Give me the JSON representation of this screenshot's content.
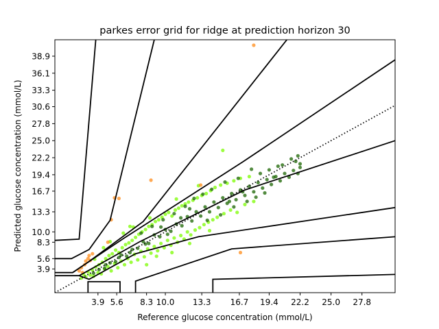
{
  "chart_data": {
    "type": "scatter",
    "title": "parkes error grid for ridge at prediction horizon 30",
    "xlabel": "Reference glucose concentration (mmol/L)",
    "ylabel": "Predicted glucose concentration (mmol/L)",
    "xlim": [
      0,
      30.8
    ],
    "ylim": [
      0,
      41.6
    ],
    "x_ticks": [
      3.9,
      5.6,
      8.3,
      10.0,
      13.3,
      16.7,
      19.4,
      22.2,
      25.0,
      27.8
    ],
    "y_ticks": [
      3.9,
      5.6,
      8.3,
      10.0,
      13.3,
      16.7,
      19.4,
      22.2,
      25.0,
      27.8,
      30.6,
      33.3,
      36.1,
      38.9
    ],
    "grid": false,
    "legend": "none",
    "identity_line": {
      "style": "dotted",
      "color": "#000000",
      "points": [
        [
          0,
          0
        ],
        [
          30.8,
          30.8
        ]
      ]
    },
    "zone_boundaries": [
      {
        "points": [
          [
            0,
            8.6
          ],
          [
            2.2,
            8.8
          ],
          [
            3.7,
            41.6
          ]
        ]
      },
      {
        "points": [
          [
            0,
            5.6
          ],
          [
            1.5,
            5.6
          ],
          [
            3.1,
            7.1
          ],
          [
            5.0,
            11.9
          ],
          [
            9.0,
            41.6
          ]
        ]
      },
      {
        "points": [
          [
            0,
            3.3
          ],
          [
            1.6,
            3.3
          ],
          [
            3.0,
            5.0
          ],
          [
            8.0,
            11.7
          ],
          [
            21.0,
            41.6
          ]
        ]
      },
      {
        "points": [
          [
            1.6,
            3.3
          ],
          [
            3.0,
            5.0
          ],
          [
            6.2,
            8.9
          ],
          [
            17.0,
            21.5
          ],
          [
            30.8,
            38.3
          ]
        ]
      },
      {
        "points": [
          [
            0,
            2.8
          ],
          [
            2.2,
            2.8
          ],
          [
            3.0,
            3.6
          ],
          [
            7.7,
            8.4
          ],
          [
            17.2,
            16.9
          ],
          [
            30.8,
            25.0
          ]
        ]
      },
      {
        "points": [
          [
            2.2,
            2.8
          ],
          [
            3.1,
            2.2
          ],
          [
            7.3,
            6.4
          ],
          [
            13.0,
            9.2
          ],
          [
            30.8,
            14.0
          ]
        ]
      },
      {
        "points": [
          [
            3.0,
            0
          ],
          [
            3.0,
            1.8
          ],
          [
            5.9,
            1.8
          ],
          [
            5.9,
            0
          ]
        ]
      },
      {
        "points": [
          [
            7.3,
            0
          ],
          [
            7.3,
            1.9
          ],
          [
            16.0,
            7.2
          ],
          [
            30.8,
            9.2
          ]
        ]
      },
      {
        "points": [
          [
            14.3,
            0
          ],
          [
            14.3,
            2.2
          ],
          [
            30.8,
            3.0
          ]
        ]
      }
    ],
    "series": [
      {
        "color": "#7cfc00",
        "points": [
          [
            2.4,
            2.4
          ],
          [
            2.6,
            3.0
          ],
          [
            2.8,
            2.6
          ],
          [
            3.0,
            3.4
          ],
          [
            3.2,
            2.9
          ],
          [
            3.4,
            3.7
          ],
          [
            3.5,
            2.7
          ],
          [
            3.7,
            4.2
          ],
          [
            3.9,
            3.3
          ],
          [
            4.0,
            4.6
          ],
          [
            4.2,
            3.1
          ],
          [
            4.3,
            5.0
          ],
          [
            4.5,
            3.9
          ],
          [
            4.6,
            5.6
          ],
          [
            4.8,
            4.3
          ],
          [
            4.9,
            6.1
          ],
          [
            5.1,
            3.6
          ],
          [
            5.2,
            6.4
          ],
          [
            5.4,
            4.8
          ],
          [
            5.5,
            7.0
          ],
          [
            5.7,
            4.1
          ],
          [
            5.8,
            6.6
          ],
          [
            6.0,
            5.2
          ],
          [
            6.1,
            7.4
          ],
          [
            6.3,
            4.6
          ],
          [
            6.4,
            7.9
          ],
          [
            6.6,
            5.6
          ],
          [
            6.7,
            8.2
          ],
          [
            6.9,
            5.0
          ],
          [
            7.0,
            8.6
          ],
          [
            7.2,
            6.3
          ],
          [
            7.3,
            9.1
          ],
          [
            7.5,
            5.4
          ],
          [
            7.6,
            9.6
          ],
          [
            7.8,
            6.8
          ],
          [
            7.9,
            10.0
          ],
          [
            8.1,
            5.9
          ],
          [
            8.2,
            10.4
          ],
          [
            8.4,
            7.2
          ],
          [
            8.5,
            10.9
          ],
          [
            8.7,
            6.5
          ],
          [
            8.8,
            11.2
          ],
          [
            9.0,
            7.6
          ],
          [
            9.1,
            11.7
          ],
          [
            9.3,
            6.9
          ],
          [
            9.4,
            12.0
          ],
          [
            9.6,
            8.1
          ],
          [
            9.7,
            12.4
          ],
          [
            9.9,
            7.4
          ],
          [
            10.0,
            12.9
          ],
          [
            10.2,
            8.6
          ],
          [
            10.3,
            13.2
          ],
          [
            10.5,
            7.8
          ],
          [
            10.6,
            12.6
          ],
          [
            10.8,
            9.0
          ],
          [
            10.9,
            13.6
          ],
          [
            11.1,
            8.3
          ],
          [
            11.2,
            13.9
          ],
          [
            11.4,
            9.4
          ],
          [
            11.5,
            14.3
          ],
          [
            11.7,
            8.8
          ],
          [
            11.8,
            14.6
          ],
          [
            12.0,
            10.0
          ],
          [
            12.1,
            14.9
          ],
          [
            12.3,
            9.5
          ],
          [
            12.5,
            15.2
          ],
          [
            12.7,
            10.3
          ],
          [
            12.9,
            15.6
          ],
          [
            13.1,
            10.7
          ],
          [
            13.3,
            16.0
          ],
          [
            13.5,
            11.2
          ],
          [
            13.7,
            16.3
          ],
          [
            13.9,
            11.6
          ],
          [
            14.1,
            16.8
          ],
          [
            14.3,
            12.0
          ],
          [
            14.5,
            17.3
          ],
          [
            14.7,
            12.4
          ],
          [
            15.0,
            17.7
          ],
          [
            15.3,
            13.0
          ],
          [
            15.6,
            18.0
          ],
          [
            15.9,
            13.6
          ],
          [
            16.2,
            18.4
          ],
          [
            16.5,
            13.2
          ],
          [
            16.8,
            18.8
          ],
          [
            17.2,
            14.5
          ],
          [
            17.6,
            19.1
          ],
          [
            18.0,
            15.0
          ],
          [
            5.0,
            8.4
          ],
          [
            6.2,
            9.8
          ],
          [
            7.1,
            10.8
          ],
          [
            8.6,
            12.3
          ],
          [
            4.4,
            7.4
          ],
          [
            9.2,
            6.0
          ],
          [
            10.6,
            6.6
          ],
          [
            12.2,
            8.1
          ],
          [
            14.0,
            10.2
          ],
          [
            15.2,
            23.4
          ],
          [
            8.3,
            4.6
          ],
          [
            6.8,
            10.9
          ],
          [
            3.6,
            5.5
          ],
          [
            11.0,
            15.4
          ],
          [
            13.0,
            17.6
          ]
        ]
      },
      {
        "color": "#1a6400",
        "points": [
          [
            3.5,
            3.2
          ],
          [
            4.0,
            3.8
          ],
          [
            4.5,
            4.0
          ],
          [
            5.0,
            4.9
          ],
          [
            5.5,
            5.1
          ],
          [
            6.0,
            6.2
          ],
          [
            6.5,
            6.0
          ],
          [
            7.0,
            7.1
          ],
          [
            7.5,
            7.3
          ],
          [
            8.0,
            8.4
          ],
          [
            8.5,
            8.1
          ],
          [
            9.0,
            9.5
          ],
          [
            9.5,
            9.2
          ],
          [
            10.0,
            10.4
          ],
          [
            10.5,
            10.1
          ],
          [
            11.0,
            11.3
          ],
          [
            11.5,
            11.0
          ],
          [
            12.0,
            12.5
          ],
          [
            12.4,
            11.8
          ],
          [
            12.8,
            13.3
          ],
          [
            13.2,
            12.6
          ],
          [
            13.6,
            14.1
          ],
          [
            14.0,
            13.3
          ],
          [
            14.4,
            14.9
          ],
          [
            14.8,
            14.0
          ],
          [
            15.2,
            15.6
          ],
          [
            15.6,
            14.7
          ],
          [
            16.0,
            16.3
          ],
          [
            16.4,
            15.3
          ],
          [
            16.8,
            16.9
          ],
          [
            17.2,
            16.0
          ],
          [
            17.6,
            17.5
          ],
          [
            18.0,
            16.6
          ],
          [
            18.4,
            18.1
          ],
          [
            18.8,
            17.2
          ],
          [
            19.2,
            18.6
          ],
          [
            19.6,
            17.8
          ],
          [
            20.0,
            19.1
          ],
          [
            20.4,
            18.4
          ],
          [
            20.8,
            19.6
          ],
          [
            21.2,
            19.0
          ],
          [
            21.6,
            20.1
          ],
          [
            22.0,
            19.6
          ],
          [
            22.2,
            20.6
          ],
          [
            22.2,
            21.2
          ],
          [
            21.8,
            21.6
          ],
          [
            20.6,
            21.0
          ],
          [
            19.4,
            20.2
          ],
          [
            18.6,
            19.6
          ],
          [
            17.8,
            20.3
          ],
          [
            16.6,
            18.8
          ],
          [
            15.4,
            18.2
          ],
          [
            14.2,
            17.0
          ],
          [
            13.4,
            16.2
          ],
          [
            12.6,
            15.5
          ],
          [
            11.8,
            14.2
          ],
          [
            10.8,
            13.0
          ],
          [
            9.8,
            12.0
          ],
          [
            8.8,
            10.9
          ],
          [
            7.8,
            9.8
          ],
          [
            13.8,
            11.9
          ],
          [
            15.0,
            12.8
          ],
          [
            16.2,
            14.1
          ],
          [
            17.4,
            15.0
          ],
          [
            18.2,
            15.7
          ],
          [
            19.0,
            16.4
          ],
          [
            22.0,
            22.5
          ],
          [
            21.4,
            22.0
          ],
          [
            20.2,
            20.8
          ],
          [
            9.6,
            10.8
          ],
          [
            11.4,
            12.3
          ],
          [
            12.2,
            13.8
          ],
          [
            4.6,
            4.6
          ],
          [
            5.8,
            5.8
          ],
          [
            6.8,
            6.6
          ],
          [
            8.2,
            8.0
          ],
          [
            10.2,
            9.6
          ],
          [
            15.8,
            15.0
          ],
          [
            17.0,
            16.6
          ],
          [
            19.8,
            19.0
          ]
        ]
      },
      {
        "color": "#ff8c1a",
        "points": [
          [
            2.2,
            3.6
          ],
          [
            2.4,
            4.1
          ],
          [
            2.5,
            3.3
          ],
          [
            2.7,
            4.6
          ],
          [
            2.8,
            5.2
          ],
          [
            3.0,
            5.6
          ],
          [
            3.2,
            5.3
          ],
          [
            3.4,
            6.4
          ],
          [
            3.1,
            6.1
          ],
          [
            4.8,
            8.3
          ],
          [
            5.1,
            12.0
          ],
          [
            5.4,
            15.6
          ],
          [
            5.8,
            15.5
          ],
          [
            8.7,
            18.5
          ],
          [
            13.2,
            17.7
          ],
          [
            16.8,
            6.6
          ],
          [
            18.0,
            40.7
          ]
        ]
      }
    ]
  }
}
